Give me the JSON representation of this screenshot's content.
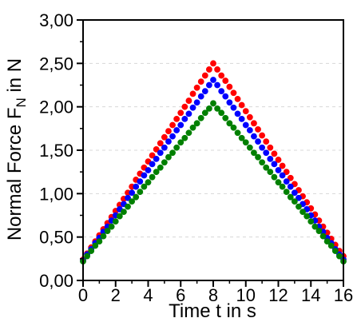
{
  "chart_data": {
    "type": "scatter",
    "xlabel": "Time t in s",
    "ylabel_main": "Normal Force F",
    "ylabel_sub": "N",
    "ylabel_unit": " in N",
    "xlim": [
      0,
      16
    ],
    "ylim": [
      0,
      3
    ],
    "x_ticks": [
      0,
      2,
      4,
      6,
      8,
      10,
      12,
      14,
      16
    ],
    "x_tick_labels": [
      "0",
      "2",
      "4",
      "6",
      "8",
      "10",
      "12",
      "14",
      "16"
    ],
    "y_ticks": [
      0,
      0.5,
      1,
      1.5,
      2,
      2.5,
      3
    ],
    "y_tick_labels": [
      "0,00",
      "0,50",
      "1,00",
      "1,50",
      "2,00",
      "2,50",
      "3,00"
    ],
    "grid": true,
    "legend": "none",
    "series": [
      {
        "color": "#ff0000",
        "peak_x": 8,
        "values": [
          [
            0,
            0.24
          ],
          [
            0.25,
            0.31
          ],
          [
            0.5,
            0.38
          ],
          [
            0.75,
            0.45
          ],
          [
            1,
            0.52
          ],
          [
            1.25,
            0.59
          ],
          [
            1.5,
            0.66
          ],
          [
            1.75,
            0.73
          ],
          [
            2,
            0.8
          ],
          [
            2.25,
            0.87
          ],
          [
            2.5,
            0.94
          ],
          [
            2.75,
            1.01
          ],
          [
            3,
            1.08
          ],
          [
            3.25,
            1.16
          ],
          [
            3.5,
            1.23
          ],
          [
            3.75,
            1.3
          ],
          [
            4,
            1.37
          ],
          [
            4.25,
            1.44
          ],
          [
            4.5,
            1.51
          ],
          [
            4.75,
            1.58
          ],
          [
            5,
            1.65
          ],
          [
            5.25,
            1.72
          ],
          [
            5.5,
            1.79
          ],
          [
            5.75,
            1.86
          ],
          [
            6,
            1.93
          ],
          [
            6.25,
            2.0
          ],
          [
            6.5,
            2.07
          ],
          [
            6.75,
            2.15
          ],
          [
            7,
            2.22
          ],
          [
            7.25,
            2.29
          ],
          [
            7.5,
            2.36
          ],
          [
            7.75,
            2.43
          ],
          [
            8,
            2.5
          ],
          [
            8.25,
            2.43
          ],
          [
            8.5,
            2.36
          ],
          [
            8.75,
            2.3
          ],
          [
            9,
            2.23
          ],
          [
            9.25,
            2.16
          ],
          [
            9.5,
            2.09
          ],
          [
            9.75,
            2.02
          ],
          [
            10,
            1.95
          ],
          [
            10.25,
            1.88
          ],
          [
            10.5,
            1.81
          ],
          [
            10.75,
            1.74
          ],
          [
            11,
            1.67
          ],
          [
            11.25,
            1.6
          ],
          [
            11.5,
            1.53
          ],
          [
            11.75,
            1.46
          ],
          [
            12,
            1.39
          ],
          [
            12.25,
            1.32
          ],
          [
            12.5,
            1.25
          ],
          [
            12.75,
            1.18
          ],
          [
            13,
            1.11
          ],
          [
            13.25,
            1.04
          ],
          [
            13.5,
            0.97
          ],
          [
            13.75,
            0.9
          ],
          [
            14,
            0.83
          ],
          [
            14.25,
            0.76
          ],
          [
            14.5,
            0.69
          ],
          [
            14.75,
            0.62
          ],
          [
            15,
            0.55
          ],
          [
            15.25,
            0.48
          ],
          [
            15.5,
            0.41
          ],
          [
            15.75,
            0.34
          ],
          [
            16,
            0.28
          ]
        ]
      },
      {
        "color": "#0000ff",
        "peak_x": 8,
        "values": [
          [
            0,
            0.23
          ],
          [
            0.25,
            0.3
          ],
          [
            0.5,
            0.36
          ],
          [
            0.75,
            0.43
          ],
          [
            1,
            0.49
          ],
          [
            1.25,
            0.56
          ],
          [
            1.5,
            0.62
          ],
          [
            1.75,
            0.69
          ],
          [
            2,
            0.75
          ],
          [
            2.25,
            0.82
          ],
          [
            2.5,
            0.88
          ],
          [
            2.75,
            0.95
          ],
          [
            3,
            1.01
          ],
          [
            3.25,
            1.08
          ],
          [
            3.5,
            1.14
          ],
          [
            3.75,
            1.21
          ],
          [
            4,
            1.27
          ],
          [
            4.25,
            1.34
          ],
          [
            4.5,
            1.4
          ],
          [
            4.75,
            1.47
          ],
          [
            5,
            1.53
          ],
          [
            5.25,
            1.6
          ],
          [
            5.5,
            1.66
          ],
          [
            5.75,
            1.73
          ],
          [
            6,
            1.79
          ],
          [
            6.25,
            1.86
          ],
          [
            6.5,
            1.92
          ],
          [
            6.75,
            1.99
          ],
          [
            7,
            2.05
          ],
          [
            7.25,
            2.12
          ],
          [
            7.5,
            2.18
          ],
          [
            7.75,
            2.25
          ],
          [
            8,
            2.31
          ],
          [
            8.25,
            2.25
          ],
          [
            8.5,
            2.18
          ],
          [
            8.75,
            2.12
          ],
          [
            9,
            2.05
          ],
          [
            9.25,
            1.99
          ],
          [
            9.5,
            1.92
          ],
          [
            9.75,
            1.86
          ],
          [
            10,
            1.79
          ],
          [
            10.25,
            1.73
          ],
          [
            10.5,
            1.66
          ],
          [
            10.75,
            1.6
          ],
          [
            11,
            1.53
          ],
          [
            11.25,
            1.47
          ],
          [
            11.5,
            1.4
          ],
          [
            11.75,
            1.34
          ],
          [
            12,
            1.27
          ],
          [
            12.25,
            1.21
          ],
          [
            12.5,
            1.14
          ],
          [
            12.75,
            1.08
          ],
          [
            13,
            1.01
          ],
          [
            13.25,
            0.95
          ],
          [
            13.5,
            0.88
          ],
          [
            13.75,
            0.82
          ],
          [
            14,
            0.75
          ],
          [
            14.25,
            0.69
          ],
          [
            14.5,
            0.62
          ],
          [
            14.75,
            0.56
          ],
          [
            15,
            0.49
          ],
          [
            15.25,
            0.43
          ],
          [
            15.5,
            0.36
          ],
          [
            15.75,
            0.3
          ],
          [
            16,
            0.24
          ]
        ]
      },
      {
        "color": "#008000",
        "peak_x": 8,
        "values": [
          [
            0,
            0.22
          ],
          [
            0.25,
            0.28
          ],
          [
            0.5,
            0.34
          ],
          [
            0.75,
            0.4
          ],
          [
            1,
            0.45
          ],
          [
            1.25,
            0.51
          ],
          [
            1.5,
            0.57
          ],
          [
            1.75,
            0.62
          ],
          [
            2,
            0.68
          ],
          [
            2.25,
            0.74
          ],
          [
            2.5,
            0.79
          ],
          [
            2.75,
            0.85
          ],
          [
            3,
            0.91
          ],
          [
            3.25,
            0.96
          ],
          [
            3.5,
            1.02
          ],
          [
            3.75,
            1.08
          ],
          [
            4,
            1.13
          ],
          [
            4.25,
            1.19
          ],
          [
            4.5,
            1.25
          ],
          [
            4.75,
            1.3
          ],
          [
            5,
            1.36
          ],
          [
            5.25,
            1.42
          ],
          [
            5.5,
            1.47
          ],
          [
            5.75,
            1.53
          ],
          [
            6,
            1.59
          ],
          [
            6.25,
            1.64
          ],
          [
            6.5,
            1.7
          ],
          [
            6.75,
            1.76
          ],
          [
            7,
            1.81
          ],
          [
            7.25,
            1.87
          ],
          [
            7.5,
            1.93
          ],
          [
            7.75,
            1.98
          ],
          [
            8,
            2.04
          ],
          [
            8.25,
            1.98
          ],
          [
            8.5,
            1.93
          ],
          [
            8.75,
            1.87
          ],
          [
            9,
            1.81
          ],
          [
            9.25,
            1.76
          ],
          [
            9.5,
            1.7
          ],
          [
            9.75,
            1.64
          ],
          [
            10,
            1.59
          ],
          [
            10.25,
            1.53
          ],
          [
            10.5,
            1.47
          ],
          [
            10.75,
            1.42
          ],
          [
            11,
            1.36
          ],
          [
            11.25,
            1.3
          ],
          [
            11.5,
            1.25
          ],
          [
            11.75,
            1.19
          ],
          [
            12,
            1.13
          ],
          [
            12.25,
            1.08
          ],
          [
            12.5,
            1.02
          ],
          [
            12.75,
            0.96
          ],
          [
            13,
            0.91
          ],
          [
            13.25,
            0.85
          ],
          [
            13.5,
            0.79
          ],
          [
            13.75,
            0.74
          ],
          [
            14,
            0.68
          ],
          [
            14.25,
            0.62
          ],
          [
            14.5,
            0.57
          ],
          [
            14.75,
            0.51
          ],
          [
            15,
            0.45
          ],
          [
            15.25,
            0.4
          ],
          [
            15.5,
            0.34
          ],
          [
            15.75,
            0.28
          ],
          [
            16,
            0.22
          ]
        ]
      }
    ]
  }
}
